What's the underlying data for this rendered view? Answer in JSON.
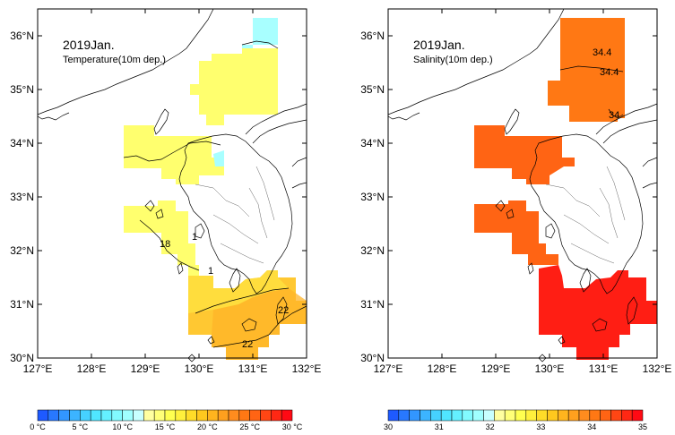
{
  "panels": [
    {
      "id": "temperature",
      "title_line1": "2019Jan.",
      "title_line2": "Temperature(10m dep.)",
      "contour_labels": [
        "18",
        "1",
        "1",
        "22",
        "22"
      ],
      "colorbar": {
        "labels": [
          "0 °C",
          "5 °C",
          "10 °C",
          "15 °C",
          "20 °C",
          "25 °C",
          "30 °C"
        ],
        "colors": [
          "#1e5aff",
          "#2878ff",
          "#3296ff",
          "#3cb4ff",
          "#46d2ff",
          "#50e6ff",
          "#64f0ff",
          "#82faff",
          "#a0ffff",
          "#c8ffff",
          "#ffffa0",
          "#ffff78",
          "#ffff50",
          "#fff03c",
          "#ffdc28",
          "#ffc81e",
          "#ffb41e",
          "#ffa01e",
          "#ff8c1e",
          "#ff7814",
          "#ff6414",
          "#ff4614",
          "#ff2814",
          "#ff0a14"
        ]
      }
    },
    {
      "id": "salinity",
      "title_line1": "2019Jan.",
      "title_line2": "Salinity(10m dep.)",
      "contour_labels": [
        "34.4",
        "34.4",
        "34"
      ],
      "colorbar": {
        "labels": [
          "30",
          "31",
          "32",
          "33",
          "34",
          "35"
        ],
        "colors": [
          "#1e5aff",
          "#2878ff",
          "#3296ff",
          "#3cb4ff",
          "#46d2ff",
          "#50e6ff",
          "#64f0ff",
          "#82faff",
          "#a0ffff",
          "#c8ffff",
          "#ffffa0",
          "#ffff78",
          "#ffff50",
          "#fff03c",
          "#ffdc28",
          "#ffc81e",
          "#ffb41e",
          "#ffa01e",
          "#ff8c1e",
          "#ff7814",
          "#ff6414",
          "#ff4614",
          "#ff2814",
          "#ff0a14"
        ]
      }
    }
  ],
  "axes": {
    "lon_labels": [
      "127°E",
      "128°E",
      "129°E",
      "130°E",
      "131°E",
      "132°E"
    ],
    "lat_labels": [
      "36°N",
      "35°N",
      "34°N",
      "33°N",
      "32°N",
      "31°N",
      "30°N"
    ]
  },
  "colors": {
    "temp_cold": "#a8ffff",
    "temp_mid": "#ffff6e",
    "temp_warm1": "#ffc832",
    "temp_warm2": "#ffb428",
    "sal_mid": "#ff7814",
    "sal_high": "#ff3c14",
    "sal_max": "#ff1414"
  }
}
